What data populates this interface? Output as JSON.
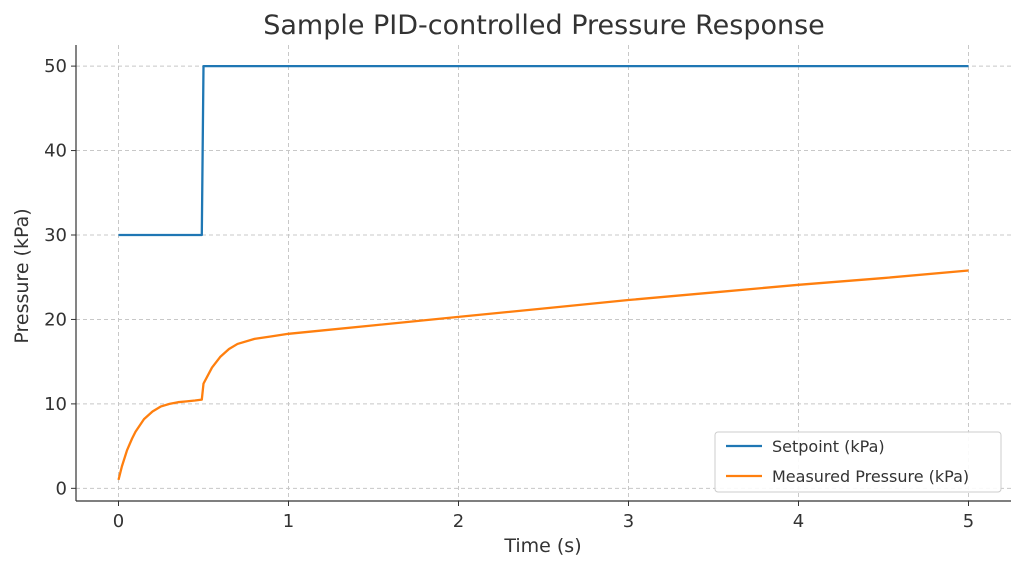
{
  "chart_data": {
    "type": "line",
    "title": "Sample PID-controlled Pressure Response",
    "xlabel": "Time (s)",
    "ylabel": "Pressure (kPa)",
    "xlim": [
      -0.25,
      5.25
    ],
    "ylim": [
      -1.5,
      52.5
    ],
    "xticks": [
      0,
      1,
      2,
      3,
      4,
      5
    ],
    "yticks": [
      0,
      10,
      20,
      30,
      40,
      50
    ],
    "grid": true,
    "legend_position": "lower-right",
    "series": [
      {
        "name": "Setpoint (kPa)",
        "color": "#1f77b4",
        "x": [
          0,
          0.49,
          0.5,
          5.0
        ],
        "y": [
          30,
          30,
          50,
          50
        ]
      },
      {
        "name": "Measured Pressure (kPa)",
        "color": "#ff7f0e",
        "x": [
          0,
          0.02,
          0.05,
          0.08,
          0.1,
          0.15,
          0.2,
          0.25,
          0.3,
          0.35,
          0.4,
          0.45,
          0.49,
          0.5,
          0.55,
          0.6,
          0.65,
          0.7,
          0.8,
          0.9,
          1.0,
          1.2,
          1.5,
          2.0,
          2.5,
          3.0,
          3.5,
          4.0,
          4.5,
          5.0
        ],
        "y": [
          1.0,
          2.6,
          4.5,
          5.9,
          6.7,
          8.2,
          9.1,
          9.7,
          10.0,
          10.2,
          10.3,
          10.4,
          10.5,
          12.4,
          14.3,
          15.6,
          16.5,
          17.1,
          17.7,
          18.0,
          18.3,
          18.7,
          19.3,
          20.3,
          21.3,
          22.3,
          23.2,
          24.1,
          24.9,
          25.8
        ]
      }
    ]
  }
}
